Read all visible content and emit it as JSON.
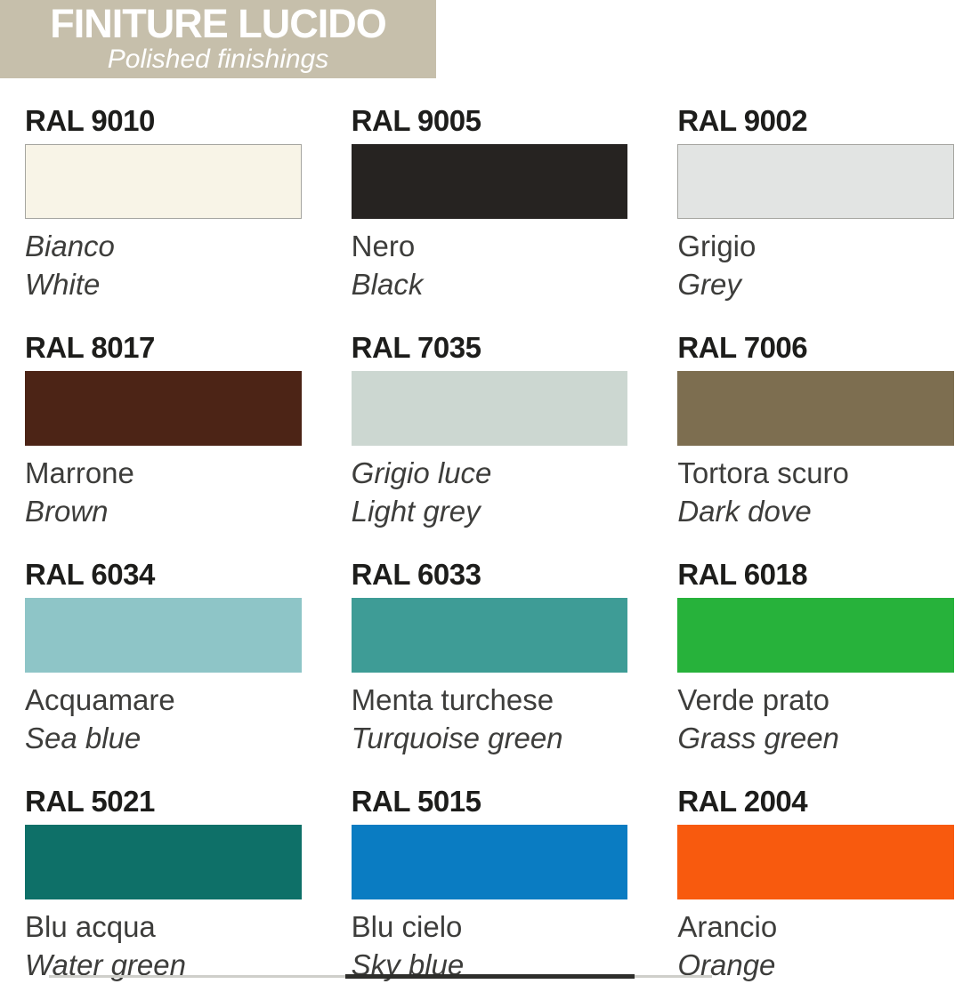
{
  "header": {
    "title": "FINITURE LUCIDO",
    "subtitle": "Polished finishings",
    "bg_color": "#c6bfab",
    "text_color": "#ffffff"
  },
  "colors": {
    "swatch_border": "#a5a5a0",
    "code_text": "#1d1d1b",
    "name_text": "#3d3d3b",
    "crop_dark": "#2e2e2b",
    "crop_light": "#cfcfca"
  },
  "swatches": [
    {
      "code": "RAL 9010",
      "name": "Bianco",
      "name_italic": true,
      "english": "White",
      "color": "#f8f4e7",
      "border": true
    },
    {
      "code": "RAL 9005",
      "name": "Nero",
      "name_italic": false,
      "english": "Black",
      "color": "#262321",
      "border": false
    },
    {
      "code": "RAL 9002",
      "name": "Grigio",
      "name_italic": false,
      "english": "Grey",
      "color": "#e2e4e3",
      "border": true
    },
    {
      "code": "RAL 8017",
      "name": "Marrone",
      "name_italic": false,
      "english": "Brown",
      "color": "#4c2416",
      "border": false
    },
    {
      "code": "RAL 7035",
      "name": "Grigio luce",
      "name_italic": true,
      "english": "Light grey",
      "color": "#ccd7d1",
      "border": false
    },
    {
      "code": "RAL 7006",
      "name": "Tortora scuro",
      "name_italic": false,
      "english": "Dark dove",
      "color": "#7d6e50",
      "border": false
    },
    {
      "code": "RAL 6034",
      "name": "Acquamare",
      "name_italic": false,
      "english": "Sea blue",
      "color": "#8ec5c7",
      "border": false
    },
    {
      "code": "RAL 6033",
      "name": "Menta turchese",
      "name_italic": false,
      "english": "Turquoise green",
      "color": "#3e9c96",
      "border": false
    },
    {
      "code": "RAL 6018",
      "name": "Verde prato",
      "name_italic": false,
      "english": "Grass green",
      "color": "#27b23b",
      "border": false
    },
    {
      "code": "RAL 5021",
      "name": "Blu acqua",
      "name_italic": false,
      "english": "Water green",
      "color": "#0e7068",
      "border": false
    },
    {
      "code": "RAL 5015",
      "name": "Blu cielo",
      "name_italic": false,
      "english": "Sky blue",
      "color": "#0a7cc2",
      "border": false
    },
    {
      "code": "RAL 2004",
      "name": "Arancio",
      "name_italic": false,
      "english": "Orange",
      "color": "#f85a0e",
      "border": false
    }
  ]
}
